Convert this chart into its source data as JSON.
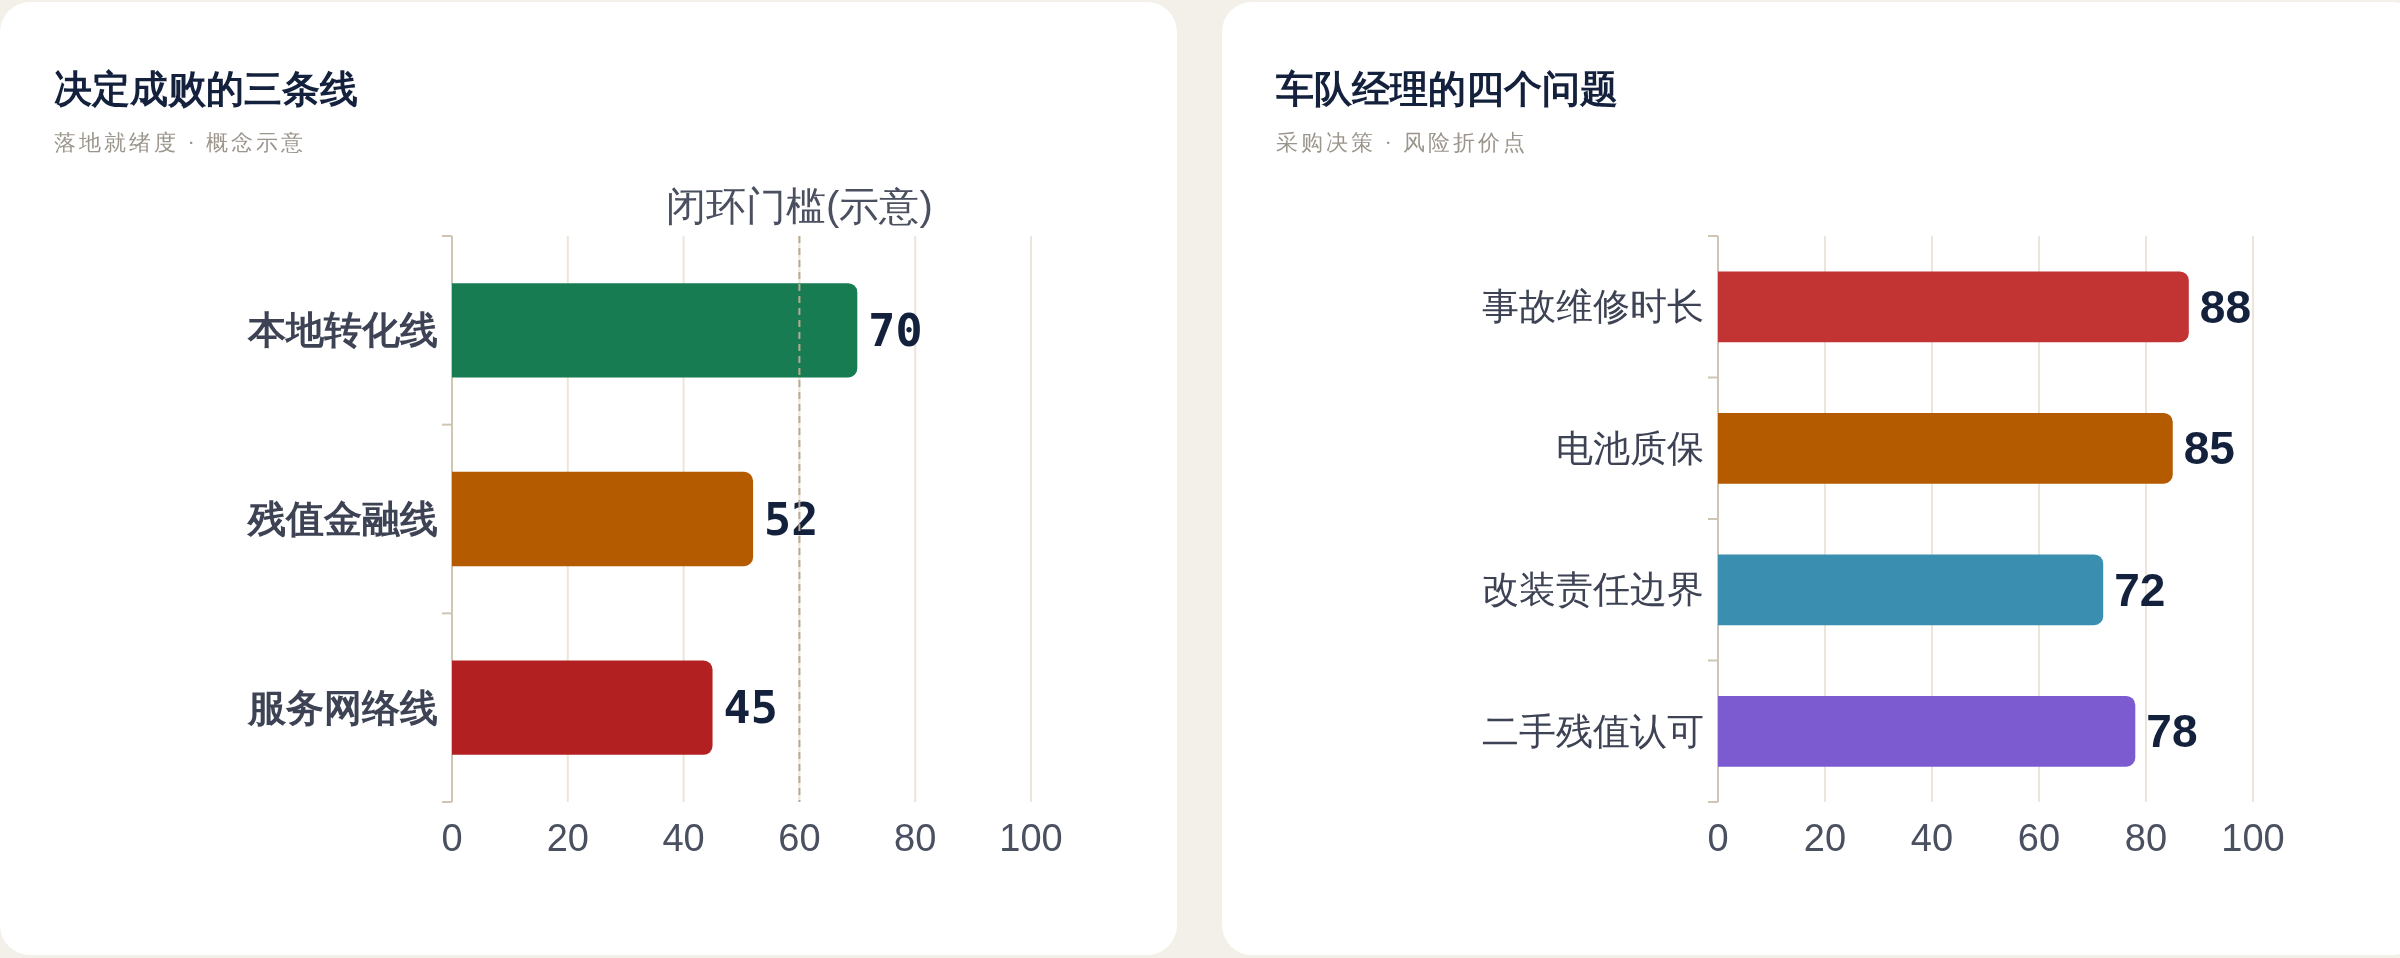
{
  "chart_data": [
    {
      "type": "bar",
      "orientation": "horizontal",
      "title": "决定成败的三条线",
      "subtitle": "落地就绪度 · 概念示意",
      "categories": [
        "本地转化线",
        "残值金融线",
        "服务网络线"
      ],
      "values": [
        70,
        52,
        45
      ],
      "colors": [
        "#177c52",
        "#b45b00",
        "#b22022"
      ],
      "xlim": [
        0,
        100
      ],
      "xticks": [
        0,
        20,
        40,
        60,
        80,
        100
      ],
      "grid": "x",
      "data_labels": true,
      "ref_lines": [
        {
          "axis": "x",
          "value": 60,
          "label": "闭环门槛(示意)",
          "color": "#bcaa90",
          "line_style": "dashed"
        }
      ]
    },
    {
      "type": "bar",
      "orientation": "horizontal",
      "title": "车队经理的四个问题",
      "subtitle": "采购决策 · 风险折价点",
      "categories": [
        "事故维修时长",
        "电池质保",
        "改装责任边界",
        "二手残值认可"
      ],
      "values": [
        88,
        85,
        72,
        78
      ],
      "colors": [
        "#c23333",
        "#b45b00",
        "#3a8fb1",
        "#7b5bcf"
      ],
      "xlim": [
        0,
        100
      ],
      "xticks": [
        0,
        20,
        40,
        60,
        80,
        100
      ],
      "grid": "x",
      "data_labels": true
    }
  ]
}
